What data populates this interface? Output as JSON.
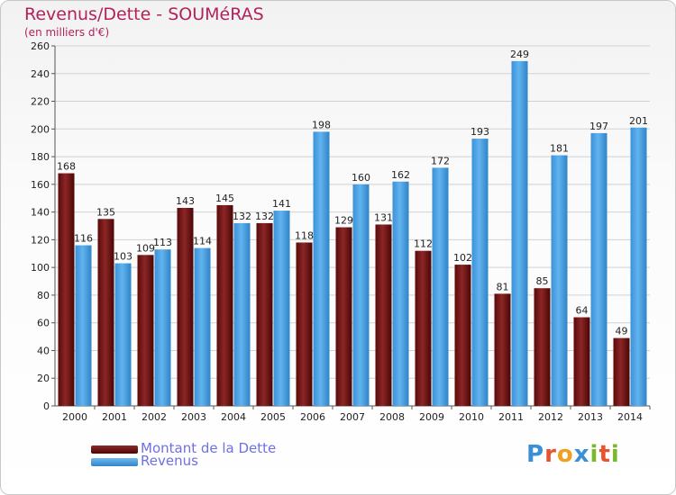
{
  "chart_data": {
    "type": "bar",
    "title": "Revenus/Dette - SOUMéRAS",
    "subtitle": "(en milliers d'€)",
    "categories": [
      "2000",
      "2001",
      "2002",
      "2003",
      "2004",
      "2005",
      "2006",
      "2007",
      "2008",
      "2009",
      "2010",
      "2011",
      "2012",
      "2013",
      "2014"
    ],
    "series": [
      {
        "name": "Montant de la Dette",
        "color": "#6e1414",
        "values": [
          168,
          135,
          109,
          143,
          145,
          132,
          118,
          129,
          131,
          112,
          102,
          81,
          85,
          64,
          49
        ]
      },
      {
        "name": "Revenus",
        "color": "#4aa3e6",
        "values": [
          116,
          103,
          113,
          114,
          132,
          141,
          198,
          160,
          162,
          172,
          193,
          249,
          181,
          197,
          201
        ]
      }
    ],
    "ylim": [
      0,
      260
    ],
    "yticks": [
      0,
      20,
      40,
      60,
      80,
      100,
      120,
      140,
      160,
      180,
      200,
      220,
      240,
      260
    ],
    "grid": true,
    "legend_position": "bottom-left"
  },
  "logo": "Proxiti"
}
